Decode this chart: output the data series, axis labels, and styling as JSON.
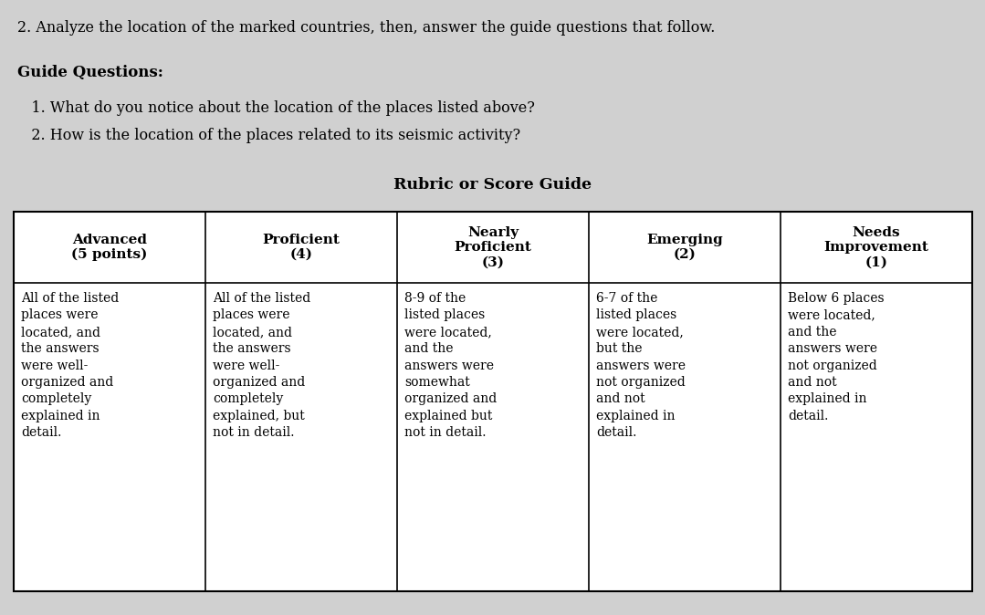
{
  "background_color": "#d0d0d0",
  "top_text": "2. Analyze the location of the marked countries, then, answer the guide questions that follow.",
  "guide_title": "Guide Questions:",
  "guide_q1": "   1. What do you notice about the location of the places listed above?",
  "guide_q2": "   2. How is the location of the places related to its seismic activity?",
  "table_title": "Rubric or Score Guide",
  "col_headers": [
    "Advanced\n(5 points)",
    "Proficient\n(4)",
    "Nearly\nProficient\n(3)",
    "Emerging\n(2)",
    "Needs\nImprovement\n(1)"
  ],
  "col_contents": [
    "All of the listed\nplaces were\nlocated, and\nthe answers\nwere well-\norganized and\ncompletely\nexplained in\ndetail.",
    "All of the listed\nplaces were\nlocated, and\nthe answers\nwere well-\norganized and\ncompletely\nexplained, but\nnot in detail.",
    "8-9 of the\nlisted places\nwere located,\nand the\nanswers were\nsomewhat\norganized and\nexplained but\nnot in detail.",
    "6-7 of the\nlisted places\nwere located,\nbut the\nanswers were\nnot organized\nand not\nexplained in\ndetail.",
    "Below 6 places\nwere located,\nand the\nanswers were\nnot organized\nand not\nexplained in\ndetail."
  ],
  "fig_width": 10.79,
  "fig_height": 6.74,
  "dpi": 100
}
